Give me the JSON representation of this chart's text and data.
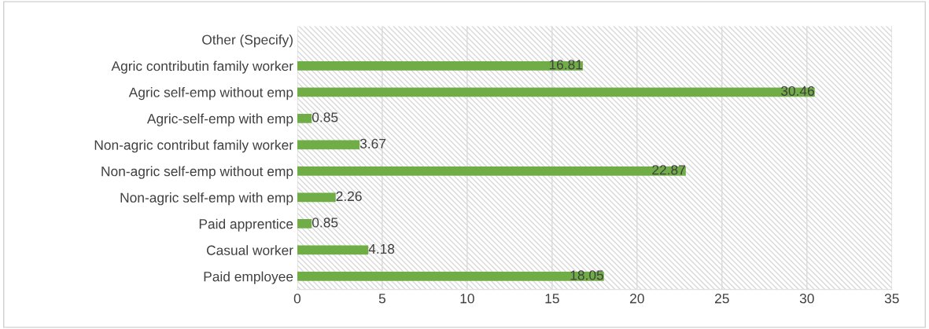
{
  "chart_data": {
    "type": "bar",
    "orientation": "horizontal",
    "categories": [
      "Other (Specify)",
      "Agric contributin family worker",
      "Agric self-emp without emp",
      "Agric-self-emp with emp",
      "Non-agric contribut family worker",
      "Non-agric self-emp without emp",
      "Non-agric self-emp with emp",
      "Paid apprentice",
      "Casual worker",
      "Paid employee"
    ],
    "values": [
      null,
      16.81,
      30.46,
      0.85,
      3.67,
      22.87,
      2.26,
      0.85,
      4.18,
      18.05
    ],
    "color": "#70ad47",
    "xlim": [
      0,
      35
    ],
    "xticks": [
      0,
      5,
      10,
      15,
      20,
      25,
      30,
      35
    ],
    "grid": "x",
    "data_labels": true
  }
}
